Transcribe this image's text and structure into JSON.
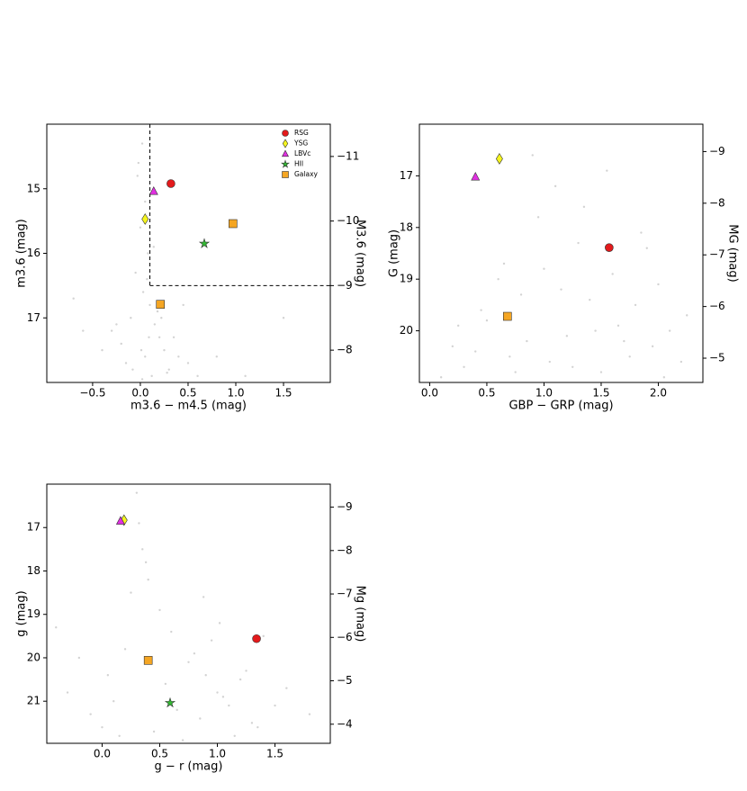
{
  "chart_data": [
    {
      "type": "scatter",
      "xlabel": "m3.6 − m4.5 (mag)",
      "ylabel": "m3.6 (mag)",
      "y2label": "M3.6 (mag)",
      "xlim": [
        -0.98,
        1.99
      ],
      "ylim": [
        14.0,
        18.0
      ],
      "y2lim": [
        -11.5,
        -7.5
      ],
      "y_inverted": true,
      "xticks": [
        {
          "value": -0.5,
          "label": "−0.5"
        },
        {
          "value": 0,
          "label": "0.0"
        },
        0.5,
        {
          "value": 1,
          "label": "1.0"
        },
        1.5
      ],
      "yticks": [
        15,
        16,
        17
      ],
      "y2ticks": [
        {
          "value": -11,
          "label": "−11"
        },
        {
          "value": -10,
          "label": "−10"
        },
        {
          "value": -9,
          "label": "−9"
        },
        {
          "value": -8,
          "label": "−8"
        }
      ],
      "thresholds": {
        "x": 0.1,
        "y2": -9
      },
      "legend": "upper right",
      "background": {
        "color": "#d3d3d3",
        "x": [
          0.02,
          -0.03,
          0.05,
          0.0,
          0.08,
          -0.05,
          0.03,
          0.1,
          -0.1,
          0.15,
          0.2,
          -0.2,
          0.25,
          0.05,
          -0.15,
          0.3,
          0.12,
          -0.3,
          0.4,
          0.18,
          0.02,
          -0.08,
          0.35,
          0.5,
          -0.4,
          0.6,
          0.22,
          -0.6,
          0.07,
          0.28,
          0.45,
          -0.25,
          0.8,
          1.1,
          -0.7,
          0.14,
          0.01,
          0.09,
          1.5,
          -0.02
        ],
        "y": [
          14.3,
          14.8,
          15.2,
          15.6,
          16.0,
          16.3,
          16.6,
          16.8,
          17.0,
          17.1,
          17.3,
          17.4,
          17.5,
          17.6,
          17.7,
          17.8,
          17.9,
          17.2,
          17.6,
          16.9,
          17.95,
          17.8,
          17.3,
          17.7,
          17.5,
          17.9,
          17.0,
          17.2,
          16.4,
          17.85,
          16.8,
          17.1,
          17.6,
          17.9,
          16.7,
          15.9,
          17.5,
          17.3,
          17.0,
          14.6
        ]
      },
      "series": [
        {
          "name": "RSG",
          "color": "#e31a1c",
          "marker": "circle",
          "x": [
            0.32
          ],
          "values": [
            14.92
          ]
        },
        {
          "name": "YSG",
          "color": "#f5f51e",
          "marker": "diamond",
          "x": [
            0.05
          ],
          "values": [
            15.47
          ]
        },
        {
          "name": "LBVc",
          "color": "#e030e0",
          "marker": "triangle",
          "x": [
            0.14
          ],
          "values": [
            15.04
          ]
        },
        {
          "name": "HII",
          "color": "#33bb33",
          "marker": "star",
          "x": [
            0.67
          ],
          "values": [
            15.85
          ]
        },
        {
          "name": "Galaxy",
          "color": "#f5a623",
          "marker": "square",
          "x": [
            0.97,
            0.21
          ],
          "values": [
            15.54,
            16.79
          ]
        }
      ]
    },
    {
      "type": "scatter",
      "xlabel": "GBP − GRP (mag)",
      "ylabel": "G (mag)",
      "y2label": "MG (mag)",
      "xlim": [
        -0.09,
        2.39
      ],
      "ylim": [
        16.0,
        21.0
      ],
      "y2lim": [
        -9.53,
        -4.53
      ],
      "y_inverted": true,
      "xticks": [
        {
          "value": 0,
          "label": "0.0"
        },
        0.5,
        {
          "value": 1,
          "label": "1.0"
        },
        1.5,
        {
          "value": 2,
          "label": "2.0"
        }
      ],
      "yticks": [
        17,
        18,
        19,
        20
      ],
      "y2ticks": [
        {
          "value": -9,
          "label": "−9"
        },
        {
          "value": -8,
          "label": "−8"
        },
        {
          "value": -7,
          "label": "−7"
        },
        {
          "value": -6,
          "label": "−6"
        },
        {
          "value": -5,
          "label": "−5"
        }
      ],
      "background": {
        "color": "#d3d3d3",
        "x": [
          0.9,
          1.1,
          0.95,
          1.3,
          1.6,
          1.8,
          2.1,
          0.7,
          0.5,
          0.3,
          0.2,
          1.0,
          1.4,
          1.7,
          2.0,
          2.2,
          0.8,
          1.2,
          1.5,
          1.9,
          0.6,
          0.4,
          0.1,
          1.05,
          1.35,
          1.65,
          1.95,
          2.25,
          0.85,
          1.25,
          1.55,
          1.85,
          0.45,
          0.75,
          1.15,
          1.45,
          1.75,
          2.05,
          0.25,
          0.65
        ],
        "y": [
          16.6,
          17.2,
          17.8,
          18.3,
          18.9,
          19.5,
          20.0,
          20.5,
          19.8,
          20.7,
          20.3,
          18.8,
          19.4,
          20.2,
          19.1,
          20.6,
          19.3,
          20.1,
          20.8,
          18.4,
          19.0,
          20.4,
          20.9,
          20.6,
          17.6,
          19.9,
          20.3,
          19.7,
          20.2,
          20.7,
          16.9,
          18.1,
          19.6,
          20.8,
          19.2,
          20.0,
          20.5,
          20.9,
          19.9,
          18.7
        ]
      },
      "series": [
        {
          "name": "RSG",
          "color": "#e31a1c",
          "marker": "circle",
          "x": [
            1.57
          ],
          "values": [
            18.39
          ]
        },
        {
          "name": "YSG",
          "color": "#f5f51e",
          "marker": "diamond",
          "x": [
            0.61
          ],
          "values": [
            16.67
          ]
        },
        {
          "name": "LBVc",
          "color": "#e030e0",
          "marker": "triangle",
          "x": [
            0.4
          ],
          "values": [
            17.02
          ]
        },
        {
          "name": "Galaxy",
          "color": "#f5a623",
          "marker": "square",
          "x": [
            0.68
          ],
          "values": [
            19.72
          ]
        }
      ]
    },
    {
      "type": "scatter",
      "xlabel": "g − r (mag)",
      "ylabel": "g (mag)",
      "y2label": "Mg (mag)",
      "xlim": [
        -0.48,
        1.98
      ],
      "ylim": [
        16.0,
        21.97
      ],
      "y2lim": [
        -9.53,
        -3.56
      ],
      "y_inverted": true,
      "xticks": [
        {
          "value": 0,
          "label": "0.0"
        },
        0.5,
        {
          "value": 1,
          "label": "1.0"
        },
        1.5
      ],
      "yticks": [
        17,
        18,
        19,
        20,
        21
      ],
      "y2ticks": [
        {
          "value": -9,
          "label": "−9"
        },
        {
          "value": -8,
          "label": "−8"
        },
        {
          "value": -7,
          "label": "−7"
        },
        {
          "value": -6,
          "label": "−6"
        },
        {
          "value": -5,
          "label": "−5"
        },
        {
          "value": -4,
          "label": "−4"
        }
      ],
      "background": {
        "color": "#d3d3d3",
        "x": [
          0.3,
          0.32,
          0.35,
          0.4,
          0.5,
          0.6,
          0.8,
          0.9,
          1.0,
          1.1,
          1.2,
          1.3,
          -0.2,
          -0.3,
          -0.1,
          0.0,
          0.1,
          0.2,
          0.45,
          0.55,
          0.65,
          0.75,
          0.85,
          0.95,
          1.05,
          1.15,
          1.25,
          1.4,
          1.5,
          1.6,
          -0.4,
          0.25,
          0.7,
          0.38,
          1.02,
          0.15,
          0.88,
          0.05,
          1.35,
          1.8
        ],
        "y": [
          16.2,
          16.9,
          17.5,
          18.2,
          18.9,
          19.4,
          19.9,
          20.4,
          20.8,
          21.1,
          20.5,
          21.5,
          20.0,
          20.8,
          21.3,
          21.6,
          21.0,
          19.8,
          21.7,
          20.6,
          21.2,
          20.1,
          21.4,
          19.6,
          20.9,
          21.8,
          20.3,
          19.5,
          21.1,
          20.7,
          19.3,
          18.5,
          21.9,
          17.8,
          19.2,
          21.8,
          18.6,
          20.4,
          21.6,
          21.3
        ]
      },
      "series": [
        {
          "name": "RSG",
          "color": "#e31a1c",
          "marker": "circle",
          "x": [
            1.34
          ],
          "values": [
            19.56
          ]
        },
        {
          "name": "YSG",
          "color": "#f5f51e",
          "marker": "diamond",
          "x": [
            0.19
          ],
          "values": [
            16.83
          ]
        },
        {
          "name": "LBVc",
          "color": "#e030e0",
          "marker": "triangle",
          "x": [
            0.16
          ],
          "values": [
            16.85
          ]
        },
        {
          "name": "HII",
          "color": "#33bb33",
          "marker": "star",
          "x": [
            0.59
          ],
          "values": [
            21.04
          ]
        },
        {
          "name": "Galaxy",
          "color": "#f5a623",
          "marker": "square",
          "x": [
            0.4
          ],
          "values": [
            20.06
          ]
        }
      ]
    }
  ]
}
